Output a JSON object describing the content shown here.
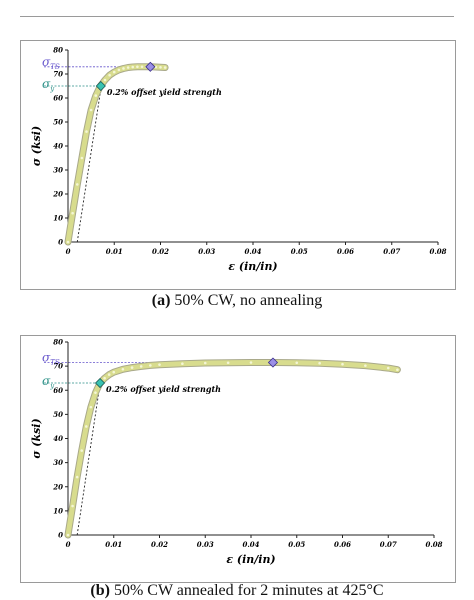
{
  "chart_data": [
    {
      "type": "line",
      "ylabel": "σ (ksi)",
      "xlabel": "ε (in/in)",
      "xlim": [
        0,
        0.08
      ],
      "ylim": [
        0,
        80
      ],
      "x_ticks": [
        "0",
        "0.01",
        "0.02",
        "0.03",
        "0.04",
        "0.05",
        "0.06",
        "0.07",
        "0.08"
      ],
      "y_ticks": [
        "0",
        "10",
        "20",
        "30",
        "40",
        "50",
        "60",
        "70",
        "80"
      ],
      "uts_label": "σTS",
      "ys_label": "σy",
      "annotation": "0.2% offset yield strength",
      "offset": 0.002,
      "modulus_ksi": 12500,
      "uts_point": {
        "x": 0.0178,
        "y": 73
      },
      "ys_point": {
        "x": 0.0071,
        "y": 65
      },
      "series": [
        {
          "x": [
            0,
            0.001,
            0.002,
            0.003,
            0.004,
            0.005,
            0.006,
            0.007,
            0.008,
            0.009,
            0.01,
            0.011,
            0.012,
            0.013,
            0.014,
            0.015,
            0.016,
            0.017,
            0.018,
            0.019,
            0.02,
            0.021
          ],
          "y": [
            0,
            12,
            24,
            35,
            46,
            55,
            61,
            65,
            67.5,
            69.5,
            70.8,
            71.7,
            72.3,
            72.7,
            72.9,
            73.0,
            73.0,
            73.0,
            73.0,
            72.9,
            72.8,
            72.7
          ]
        }
      ],
      "colors": {
        "curve": "#d8dc8e",
        "curve_edge": "#a9a98a",
        "uts_marker": "#9b8fe6",
        "ys_marker": "#39c2b0",
        "uts_line": "#6655cc",
        "ys_line": "#2a8f86"
      },
      "caption_label": "(a)",
      "caption_text": " 50% CW, no annealing"
    },
    {
      "type": "line",
      "ylabel": "σ (ksi)",
      "xlabel": "ε (in/in)",
      "xlim": [
        0,
        0.08
      ],
      "ylim": [
        0,
        80
      ],
      "x_ticks": [
        "0",
        "0.01",
        "0.02",
        "0.03",
        "0.04",
        "0.05",
        "0.06",
        "0.07",
        "0.08"
      ],
      "y_ticks": [
        "0",
        "10",
        "20",
        "30",
        "40",
        "50",
        "60",
        "70",
        "80"
      ],
      "uts_label": "σTS",
      "ys_label": "σy",
      "annotation": "0.2% offset yield strength",
      "offset": 0.002,
      "modulus_ksi": 12500,
      "uts_point": {
        "x": 0.0448,
        "y": 71.5
      },
      "ys_point": {
        "x": 0.007,
        "y": 63
      },
      "series": [
        {
          "x": [
            0,
            0.001,
            0.002,
            0.003,
            0.004,
            0.005,
            0.006,
            0.007,
            0.008,
            0.009,
            0.01,
            0.012,
            0.014,
            0.016,
            0.018,
            0.02,
            0.025,
            0.03,
            0.035,
            0.04,
            0.045,
            0.05,
            0.055,
            0.06,
            0.065,
            0.07,
            0.072
          ],
          "y": [
            0,
            12,
            24,
            35,
            45,
            53,
            59,
            63,
            65,
            66.5,
            67.5,
            68.7,
            69.4,
            69.9,
            70.3,
            70.6,
            71.0,
            71.3,
            71.4,
            71.5,
            71.5,
            71.4,
            71.2,
            70.8,
            70.2,
            69.2,
            68.5
          ]
        }
      ],
      "colors": {
        "curve": "#d8dc8e",
        "curve_edge": "#a9a98a",
        "uts_marker": "#9b8fe6",
        "ys_marker": "#39c2b0",
        "uts_line": "#6655cc",
        "ys_line": "#2a8f86"
      },
      "caption_label": "(b)",
      "caption_text": " 50% CW annealed for 2 minutes at 425°C"
    }
  ]
}
